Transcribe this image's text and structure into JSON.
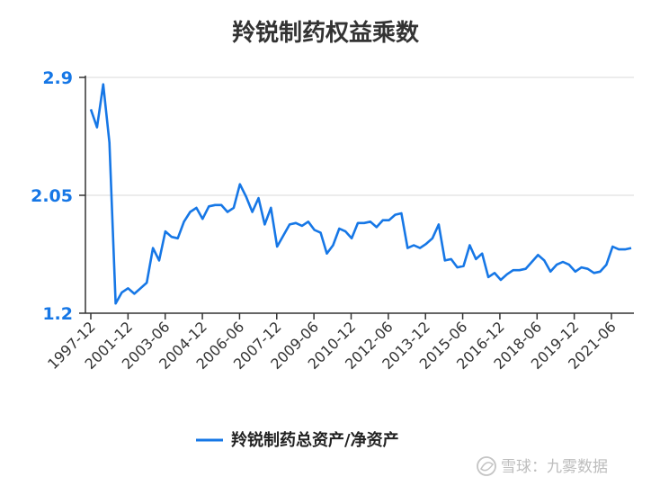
{
  "chart_data": {
    "type": "line",
    "title": "羚锐制药权益乘数",
    "xlabel": "",
    "ylabel": "",
    "ylim": [
      1.2,
      2.9
    ],
    "yticks": [
      "1.2",
      "2.05",
      "2.9"
    ],
    "xticks": [
      "1997-12",
      "2001-12",
      "2003-06",
      "2004-12",
      "2006-06",
      "2007-12",
      "2009-06",
      "2010-12",
      "2012-06",
      "2013-12",
      "2015-06",
      "2016-12",
      "2018-06",
      "2019-12",
      "2021-06"
    ],
    "grid": true,
    "legend_position": "bottom",
    "series": [
      {
        "name": "羚锐制药总资产/净资产",
        "color": "#1677e6",
        "values": [
          2.67,
          2.54,
          2.85,
          2.43,
          1.27,
          1.35,
          1.38,
          1.34,
          1.38,
          1.42,
          1.67,
          1.58,
          1.79,
          1.75,
          1.74,
          1.86,
          1.93,
          1.96,
          1.88,
          1.97,
          1.98,
          1.98,
          1.93,
          1.96,
          2.13,
          2.04,
          1.93,
          2.03,
          1.84,
          1.96,
          1.68,
          1.76,
          1.84,
          1.85,
          1.83,
          1.86,
          1.8,
          1.78,
          1.63,
          1.69,
          1.81,
          1.79,
          1.74,
          1.85,
          1.85,
          1.86,
          1.82,
          1.87,
          1.87,
          1.91,
          1.92,
          1.67,
          1.69,
          1.67,
          1.7,
          1.74,
          1.84,
          1.58,
          1.59,
          1.53,
          1.54,
          1.69,
          1.59,
          1.63,
          1.46,
          1.49,
          1.44,
          1.48,
          1.51,
          1.51,
          1.52,
          1.57,
          1.62,
          1.58,
          1.5,
          1.55,
          1.57,
          1.55,
          1.5,
          1.53,
          1.52,
          1.49,
          1.5,
          1.55,
          1.68,
          1.66,
          1.66,
          1.67
        ]
      }
    ]
  },
  "watermark": "雪球：九雾数据"
}
